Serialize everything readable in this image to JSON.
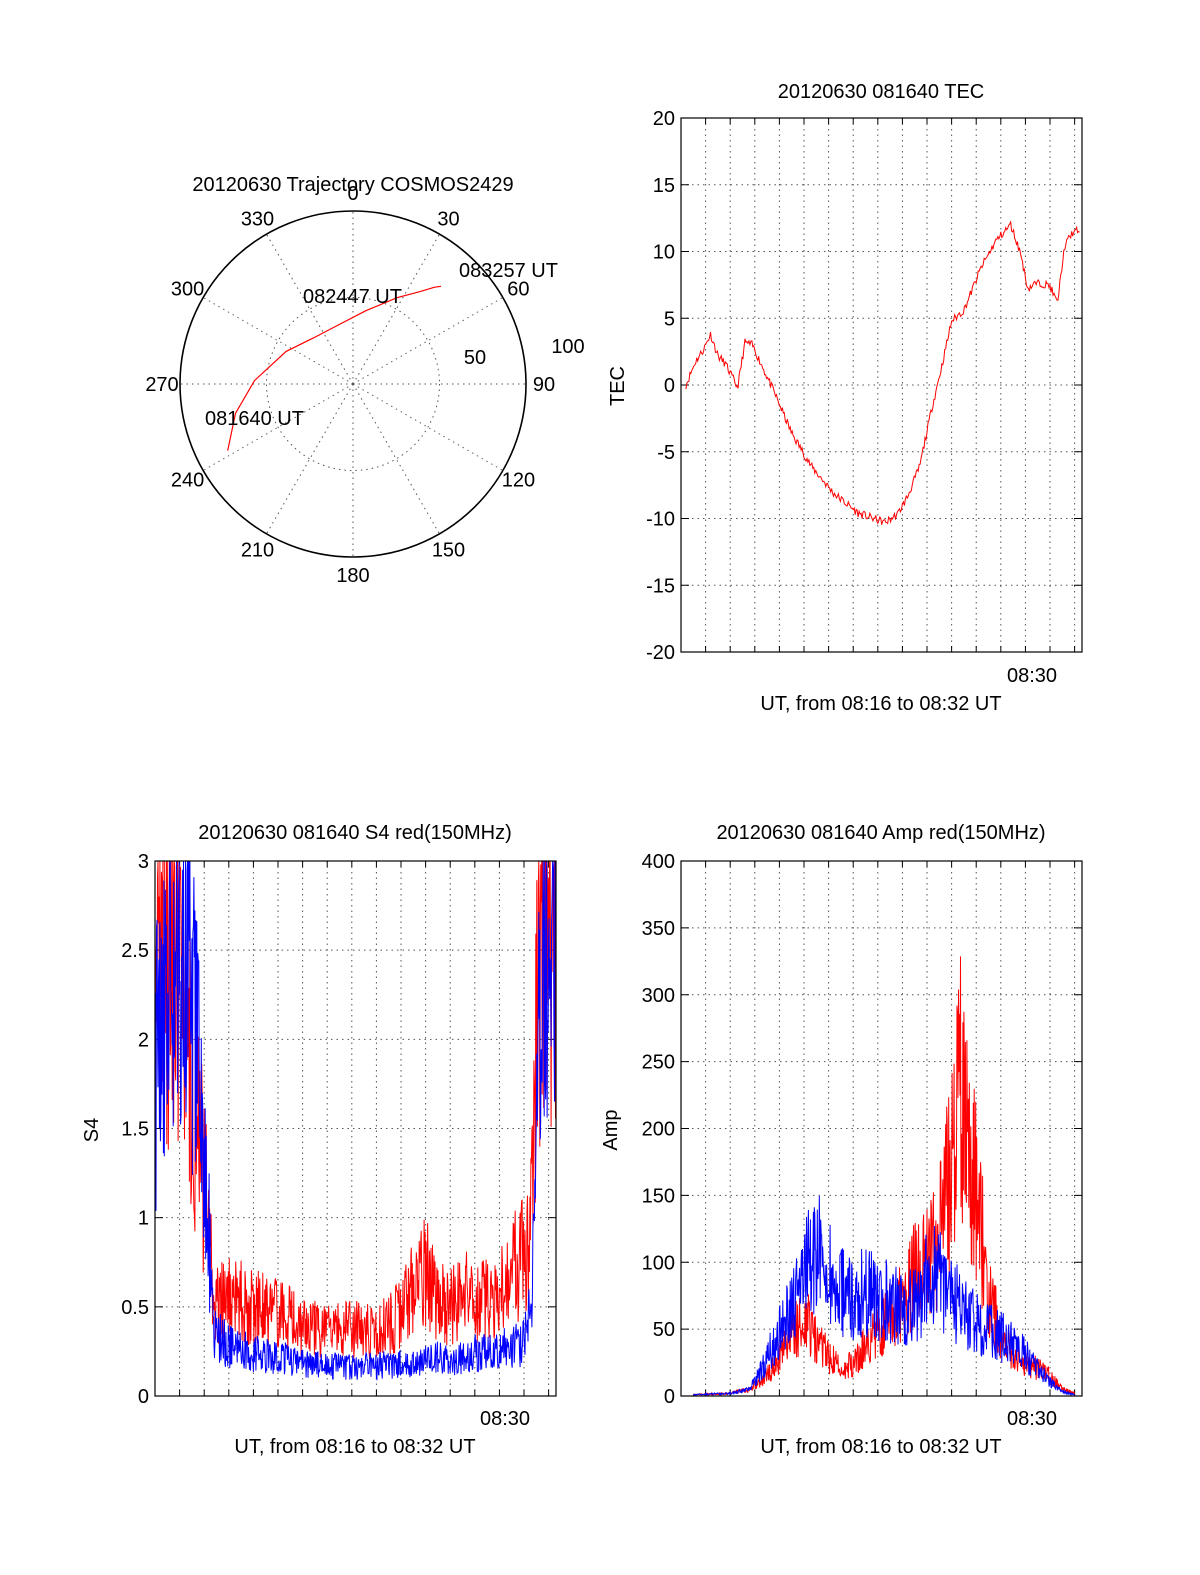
{
  "colors": {
    "red": "#ff0000",
    "blue": "#0000ff",
    "axis": "#000000",
    "grid": "#555555"
  },
  "chart_data": [
    {
      "id": "trajectory",
      "type": "polar",
      "title": "20120630 Trajectory COSMOS2429",
      "azimuth_labels": [
        "0",
        "30",
        "60",
        "90",
        "120",
        "150",
        "180",
        "210",
        "240",
        "270",
        "300",
        "330"
      ],
      "radial_labels": [
        "50",
        "100"
      ],
      "track": {
        "series_color": "red",
        "points": [
          {
            "az": 242,
            "r": 82
          },
          {
            "az": 256,
            "r": 70
          },
          {
            "az": 272,
            "r": 57
          },
          {
            "az": 296,
            "r": 43
          },
          {
            "az": 320,
            "r": 35
          },
          {
            "az": 345,
            "r": 35
          },
          {
            "az": 10,
            "r": 43
          },
          {
            "az": 27,
            "r": 56
          },
          {
            "az": 36,
            "r": 66
          },
          {
            "az": 40,
            "r": 73
          },
          {
            "az": 42,
            "r": 76
          }
        ]
      },
      "annotations": [
        {
          "text": "081640 UT",
          "az": 242,
          "r": 82
        },
        {
          "text": "082447 UT",
          "az": 328,
          "r": 40
        },
        {
          "text": "083257 UT",
          "az": 42,
          "r": 76
        }
      ]
    },
    {
      "id": "tec",
      "type": "line",
      "title": "20120630 081640 TEC",
      "xlabel": "UT, from 08:16 to 08:32 UT",
      "ylabel": "TEC",
      "xlim": [
        0,
        16.3
      ],
      "ylim": [
        -20,
        20
      ],
      "yticks": [
        20,
        15,
        10,
        5,
        0,
        -5,
        -10,
        -15,
        -20
      ],
      "xtick_labels": [
        {
          "x": 14,
          "label": "08:30"
        }
      ],
      "series": [
        {
          "color": "red",
          "x": [
            0.2,
            0.6,
            0.9,
            1.2,
            1.5,
            1.8,
            2.3,
            2.6,
            2.9,
            3.3,
            3.8,
            4.5,
            5.3,
            6.2,
            7.2,
            8.3,
            8.8,
            9.2,
            9.7,
            10.2,
            10.6,
            11.0,
            11.5,
            12.2,
            12.8,
            13.4,
            13.8,
            14.1,
            14.4,
            14.7,
            15.0,
            15.3,
            15.5,
            15.6,
            15.9,
            16.2
          ],
          "y": [
            0.0,
            1.8,
            2.6,
            3.8,
            2.2,
            1.6,
            -0.2,
            3.2,
            3.0,
            1.4,
            -0.6,
            -3.6,
            -6.1,
            -8.1,
            -9.6,
            -10.3,
            -9.7,
            -8.4,
            -6.1,
            -1.7,
            1.4,
            4.8,
            5.6,
            8.8,
            10.8,
            12.0,
            9.9,
            7.2,
            7.6,
            7.6,
            7.4,
            6.1,
            9.1,
            10.4,
            11.4,
            11.6
          ]
        }
      ]
    },
    {
      "id": "s4",
      "type": "line",
      "title": "20120630 081640 S4 red(150MHz)",
      "xlabel": "UT, from 08:16 to 08:32 UT",
      "ylabel": "S4",
      "xlim": [
        0,
        16.3
      ],
      "ylim": [
        0,
        3
      ],
      "yticks": [
        3,
        2.5,
        2,
        1.5,
        1,
        0.5,
        0
      ],
      "xtick_labels": [
        {
          "x": 14,
          "label": "08:30"
        }
      ],
      "series": [
        {
          "color": "red",
          "x": [
            0.0,
            0.3,
            0.6,
            0.9,
            1.2,
            1.6,
            2.0,
            2.4,
            3.0,
            4.0,
            5.0,
            6.0,
            7.0,
            8.0,
            9.0,
            10.0,
            10.5,
            11.0,
            11.5,
            12.0,
            12.5,
            13.0,
            13.5,
            14.0,
            14.5,
            15.0,
            15.3,
            15.6,
            16.0,
            16.3
          ],
          "y": [
            2.1,
            2.8,
            2.4,
            2.6,
            2.3,
            1.6,
            1.2,
            0.5,
            0.55,
            0.5,
            0.45,
            0.4,
            0.35,
            0.38,
            0.35,
            0.45,
            0.6,
            0.7,
            0.55,
            0.5,
            0.6,
            0.5,
            0.55,
            0.6,
            0.7,
            0.8,
            1.0,
            2.5,
            2.8,
            2.2
          ]
        },
        {
          "color": "blue",
          "x": [
            0.0,
            0.3,
            0.6,
            0.9,
            1.2,
            1.6,
            2.0,
            2.4,
            3.0,
            4.0,
            5.0,
            6.0,
            7.0,
            8.0,
            9.0,
            10.0,
            10.5,
            11.0,
            11.5,
            12.0,
            12.5,
            13.0,
            13.5,
            14.0,
            14.5,
            15.0,
            15.3,
            15.6,
            16.0,
            16.3
          ],
          "y": [
            1.8,
            2.3,
            2.5,
            2.1,
            2.7,
            2.0,
            1.4,
            0.35,
            0.28,
            0.24,
            0.22,
            0.18,
            0.17,
            0.16,
            0.17,
            0.18,
            0.18,
            0.2,
            0.22,
            0.2,
            0.22,
            0.24,
            0.24,
            0.26,
            0.28,
            0.3,
            0.5,
            2.0,
            2.7,
            2.4
          ]
        }
      ]
    },
    {
      "id": "amp",
      "type": "line",
      "title": "20120630 081640 Amp red(150MHz)",
      "xlabel": "UT, from 08:16 to 08:32 UT",
      "ylabel": "Amp",
      "xlim": [
        0,
        16.3
      ],
      "ylim": [
        0,
        400
      ],
      "yticks": [
        400,
        350,
        300,
        250,
        200,
        150,
        100,
        50,
        0
      ],
      "xtick_labels": [
        {
          "x": 14,
          "label": "08:30"
        }
      ],
      "series": [
        {
          "color": "red",
          "x": [
            0.5,
            2.0,
            2.8,
            3.5,
            4.0,
            4.5,
            5.0,
            5.5,
            6.0,
            6.5,
            7.0,
            7.5,
            8.0,
            8.5,
            9.0,
            9.5,
            10.0,
            10.5,
            11.0,
            11.3,
            11.6,
            12.0,
            12.5,
            13.0,
            13.5,
            14.0,
            14.5,
            15.0,
            15.5,
            16.0
          ],
          "y": [
            1,
            2,
            5,
            15,
            30,
            45,
            60,
            40,
            30,
            20,
            25,
            40,
            50,
            60,
            70,
            90,
            100,
            120,
            170,
            250,
            200,
            150,
            80,
            40,
            30,
            25,
            20,
            15,
            5,
            2
          ]
        },
        {
          "color": "blue",
          "x": [
            0.5,
            2.0,
            2.8,
            3.3,
            3.8,
            4.3,
            4.8,
            5.2,
            5.6,
            6.0,
            6.5,
            7.0,
            7.5,
            8.0,
            8.5,
            9.0,
            9.5,
            10.0,
            10.5,
            11.0,
            11.5,
            12.0,
            12.5,
            13.0,
            13.5,
            14.0,
            14.5,
            15.0,
            15.5,
            16.0
          ],
          "y": [
            1,
            2,
            5,
            20,
            40,
            60,
            80,
            100,
            110,
            90,
            80,
            70,
            80,
            75,
            70,
            65,
            70,
            85,
            90,
            75,
            60,
            55,
            50,
            45,
            40,
            30,
            20,
            10,
            3,
            1
          ]
        }
      ]
    }
  ]
}
